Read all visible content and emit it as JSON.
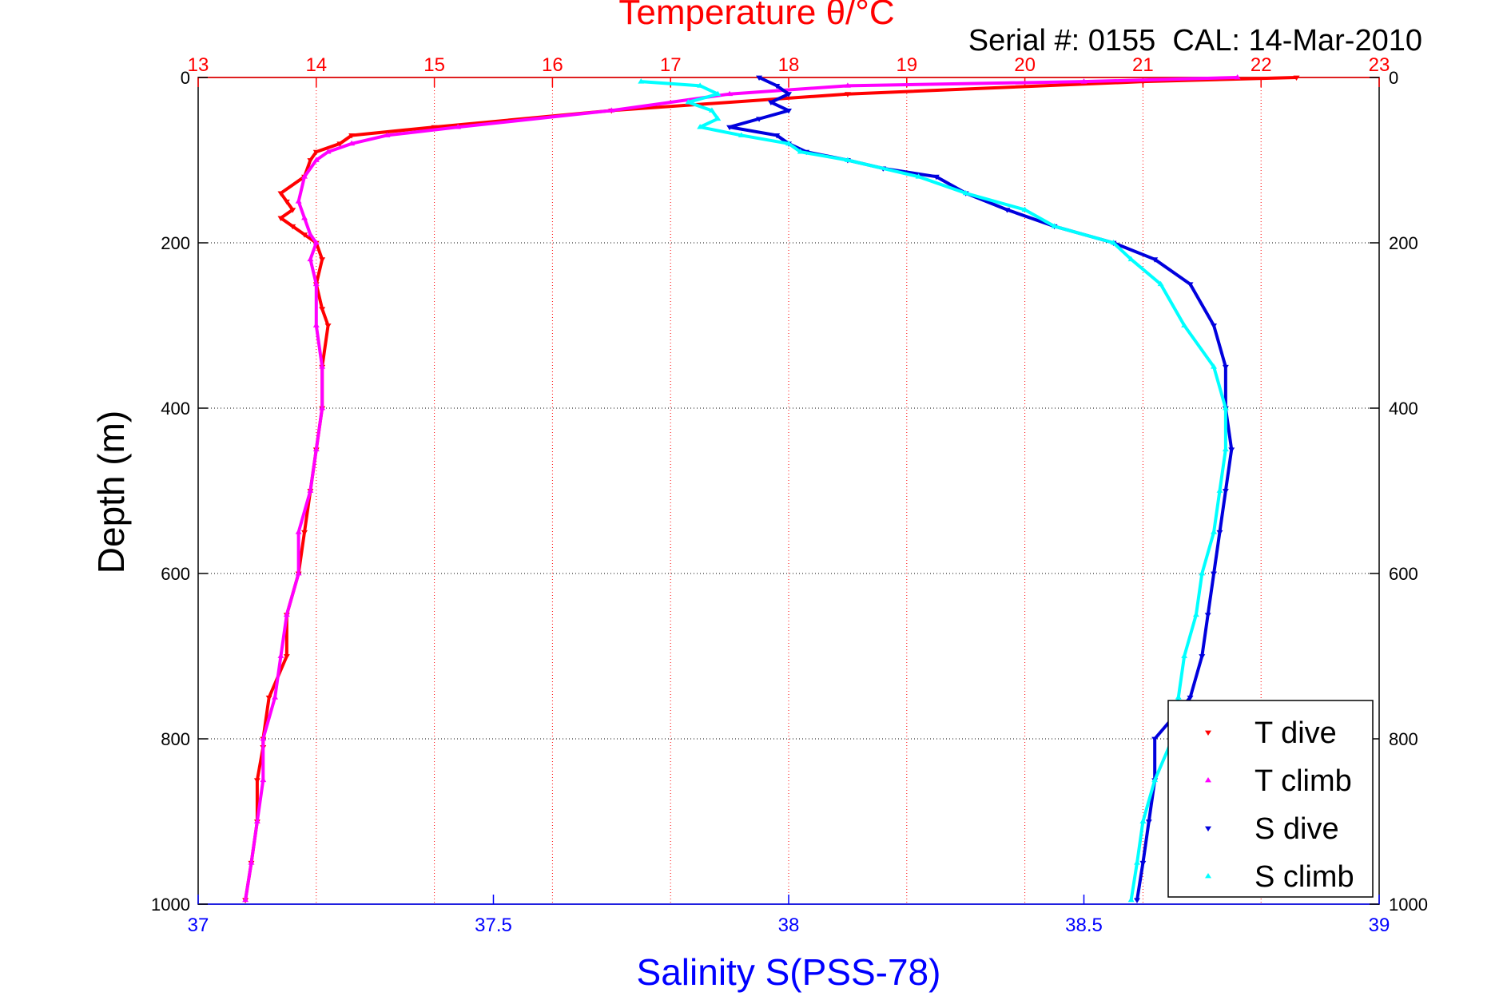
{
  "chart_data": {
    "type": "scatter",
    "title": "Temperature θ/°C",
    "annotation": "Serial #: 0155  CAL: 14-Mar-2010",
    "xlabel_top": "Temperature θ/°C",
    "xlabel_bottom": "Salinity S(PSS-78)",
    "ylabel": "Depth (m)",
    "x_top_range": [
      13,
      23
    ],
    "x_top_ticks": [
      "13",
      "14",
      "15",
      "16",
      "17",
      "18",
      "19",
      "20",
      "21",
      "22",
      "23"
    ],
    "x_bottom_range": [
      37,
      39
    ],
    "x_bottom_ticks": [
      "37",
      "37.5",
      "38",
      "38.5",
      "39"
    ],
    "y_range": [
      0,
      1000
    ],
    "y_ticks": [
      "0",
      "200",
      "400",
      "600",
      "800",
      "1000"
    ],
    "y_inverted": true,
    "grid": true,
    "legend_placement": "bottom-right",
    "colors": {
      "t_dive": "#ff0000",
      "t_climb": "#ff00ff",
      "s_dive": "#0000dd",
      "s_climb": "#00ffff"
    },
    "series": [
      {
        "name": "T dive",
        "axis": "temperature",
        "color": "#ff0000",
        "depth": [
          0,
          5,
          20,
          40,
          60,
          70,
          80,
          90,
          100,
          120,
          140,
          150,
          160,
          170,
          180,
          190,
          200,
          220,
          250,
          280,
          300,
          350,
          400,
          450,
          500,
          550,
          600,
          650,
          700,
          750,
          800,
          810,
          850,
          900,
          950,
          995
        ],
        "value": [
          22.3,
          21.0,
          18.5,
          16.5,
          15.0,
          14.3,
          14.2,
          14.0,
          13.95,
          13.9,
          13.7,
          13.75,
          13.8,
          13.7,
          13.8,
          13.9,
          14.0,
          14.05,
          14.0,
          14.05,
          14.1,
          14.05,
          14.05,
          14.0,
          13.95,
          13.9,
          13.85,
          13.75,
          13.75,
          13.6,
          13.55,
          13.55,
          13.5,
          13.5,
          13.45,
          13.4
        ]
      },
      {
        "name": "T climb",
        "axis": "temperature",
        "color": "#ff00ff",
        "depth": [
          0,
          5,
          10,
          20,
          40,
          60,
          70,
          80,
          90,
          100,
          120,
          150,
          170,
          190,
          200,
          220,
          250,
          300,
          350,
          400,
          450,
          500,
          550,
          600,
          650,
          700,
          750,
          800,
          850,
          900,
          950,
          995
        ],
        "value": [
          21.8,
          20.5,
          18.5,
          17.5,
          16.5,
          15.2,
          14.6,
          14.3,
          14.1,
          14.0,
          13.9,
          13.85,
          13.9,
          13.95,
          14.0,
          13.95,
          14.0,
          14.0,
          14.05,
          14.05,
          14.0,
          13.95,
          13.85,
          13.85,
          13.75,
          13.7,
          13.65,
          13.55,
          13.55,
          13.5,
          13.45,
          13.4
        ]
      },
      {
        "name": "S dive",
        "axis": "salinity",
        "color": "#0000dd",
        "depth": [
          0,
          10,
          20,
          30,
          40,
          50,
          60,
          70,
          80,
          90,
          100,
          110,
          120,
          140,
          160,
          180,
          200,
          220,
          250,
          300,
          350,
          400,
          450,
          500,
          550,
          600,
          650,
          700,
          750,
          800,
          850,
          900,
          950,
          995
        ],
        "value": [
          37.95,
          37.98,
          38.0,
          37.97,
          38.0,
          37.95,
          37.9,
          37.98,
          38.0,
          38.03,
          38.1,
          38.16,
          38.25,
          38.3,
          38.37,
          38.45,
          38.55,
          38.62,
          38.68,
          38.72,
          38.74,
          38.74,
          38.75,
          38.74,
          38.73,
          38.72,
          38.71,
          38.7,
          38.68,
          38.62,
          38.62,
          38.61,
          38.6,
          38.59
        ]
      },
      {
        "name": "S climb",
        "axis": "salinity",
        "color": "#00ffff",
        "depth": [
          5,
          10,
          20,
          30,
          40,
          50,
          60,
          70,
          80,
          90,
          100,
          120,
          140,
          160,
          180,
          200,
          220,
          250,
          300,
          350,
          400,
          450,
          500,
          550,
          600,
          650,
          700,
          750,
          800,
          850,
          900,
          950,
          995
        ],
        "value": [
          37.75,
          37.85,
          37.88,
          37.83,
          37.87,
          37.88,
          37.85,
          37.92,
          38.0,
          38.02,
          38.1,
          38.22,
          38.3,
          38.4,
          38.45,
          38.55,
          38.58,
          38.63,
          38.67,
          38.72,
          38.74,
          38.74,
          38.73,
          38.72,
          38.7,
          38.69,
          38.67,
          38.66,
          38.65,
          38.62,
          38.6,
          38.59,
          38.58
        ]
      }
    ]
  }
}
